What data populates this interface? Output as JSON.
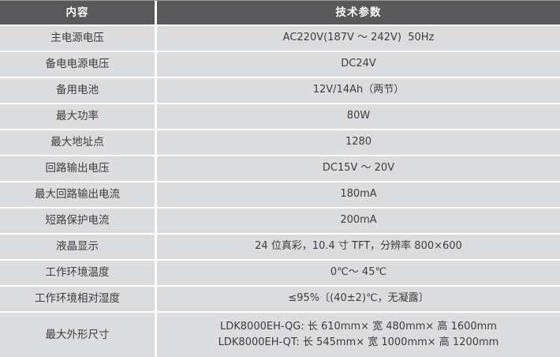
{
  "table": {
    "headers": [
      "内容",
      "技术参数"
    ],
    "rows": [
      {
        "label": "主电源电压",
        "value": "AC220V(187V ～ 242V)  50Hz"
      },
      {
        "label": "备电电源电压",
        "value": "DC24V"
      },
      {
        "label": "备用电池",
        "value": "12V/14Ah（两节）"
      },
      {
        "label": "最大功率",
        "value": "80W"
      },
      {
        "label": "最大地址点",
        "value": "1280"
      },
      {
        "label": "回路输出电压",
        "value": "DC15V ～ 20V"
      },
      {
        "label": "最大回路输出电流",
        "value": "180mA"
      },
      {
        "label": "短路保护电流",
        "value": "200mA"
      },
      {
        "label": "液晶显示",
        "value": "24 位真彩，10.4 寸 TFT，分辨率 800×600"
      },
      {
        "label": "工作环境温度",
        "value": "0℃～ 45℃"
      },
      {
        "label": "工作环境相对湿度",
        "value": "≤95%〔(40±2)℃，无凝露〕"
      },
      {
        "label": "最大外形尺寸",
        "value_lines": [
          "LDK8000EH-QG: 长 610mm× 宽 480mm× 高 1600mm",
          "LDK8000EH-QT: 长 545mm× 宽 1000mm× 高 1200mm"
        ]
      }
    ]
  },
  "colors": {
    "header_bg": "#58585b",
    "header_text": "#ffffff",
    "row_bg": "#dbdcdd",
    "row_text": "#3e3e40",
    "gap": "#ffffff",
    "top_border": "#9b9b9b"
  }
}
